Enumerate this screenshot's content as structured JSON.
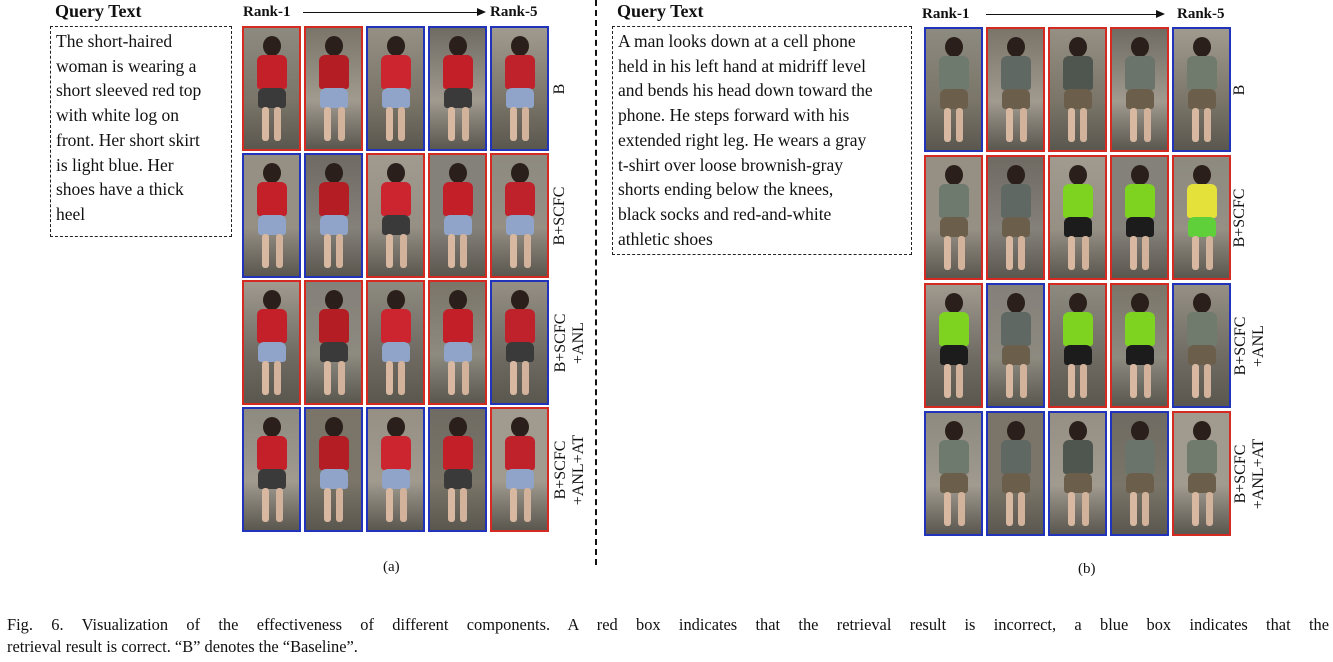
{
  "panels": [
    {
      "id": "a",
      "query_title": "Query Text",
      "query_lines": [
        "The short-haired",
        "woman is wearing a",
        "short sleeved red top",
        "with white log on",
        "front. Her short skirt",
        "is light blue.  Her",
        "shoes have a thick",
        "heel"
      ],
      "rank_start": "Rank-1",
      "rank_end": "Rank-5",
      "rows": [
        {
          "label": [
            "B"
          ],
          "results": [
            "wrong",
            "wrong",
            "correct",
            "correct",
            "correct"
          ]
        },
        {
          "label": [
            "B+SCFC"
          ],
          "results": [
            "correct",
            "correct",
            "wrong",
            "wrong",
            "wrong"
          ]
        },
        {
          "label": [
            "B+SCFC",
            "+ANL"
          ],
          "results": [
            "wrong",
            "wrong",
            "wrong",
            "wrong",
            "correct"
          ]
        },
        {
          "label": [
            "B+SCFC",
            "+ANL+AT"
          ],
          "results": [
            "correct",
            "correct",
            "correct",
            "correct",
            "wrong"
          ]
        }
      ],
      "sublabel": "(a)"
    },
    {
      "id": "b",
      "query_title": "Query Text",
      "query_lines": [
        "A man looks down at a cell phone",
        "held in his left hand at midriff level",
        "and bends his head down toward the",
        "phone. He steps forward with his",
        "extended right leg. He wears a gray",
        "t-shirt over loose brownish-gray",
        "shorts ending below the knees,",
        "black socks and red-and-white",
        "athletic shoes"
      ],
      "rank_start": "Rank-1",
      "rank_end": "Rank-5",
      "rows": [
        {
          "label": [
            "B"
          ],
          "results": [
            "correct",
            "wrong",
            "wrong",
            "wrong",
            "correct"
          ]
        },
        {
          "label": [
            "B+SCFC"
          ],
          "results": [
            "wrong",
            "wrong",
            "wrong",
            "wrong",
            "wrong"
          ]
        },
        {
          "label": [
            "B+SCFC",
            "+ANL"
          ],
          "results": [
            "wrong",
            "correct",
            "wrong",
            "wrong",
            "correct"
          ]
        },
        {
          "label": [
            "B+SCFC",
            "+ANL+AT"
          ],
          "results": [
            "correct",
            "correct",
            "correct",
            "correct",
            "wrong"
          ]
        }
      ],
      "sublabel": "(b)"
    }
  ],
  "caption": {
    "line1": "Fig. 6.  Visualization of the effectiveness of different components. A red box indicates that the retrieval result is incorrect, a blue box indicates that the",
    "line2": "retrieval result is correct. “B” denotes the “Baseline”."
  },
  "colors": {
    "correct": "#2233bb",
    "wrong": "#d42a22"
  }
}
